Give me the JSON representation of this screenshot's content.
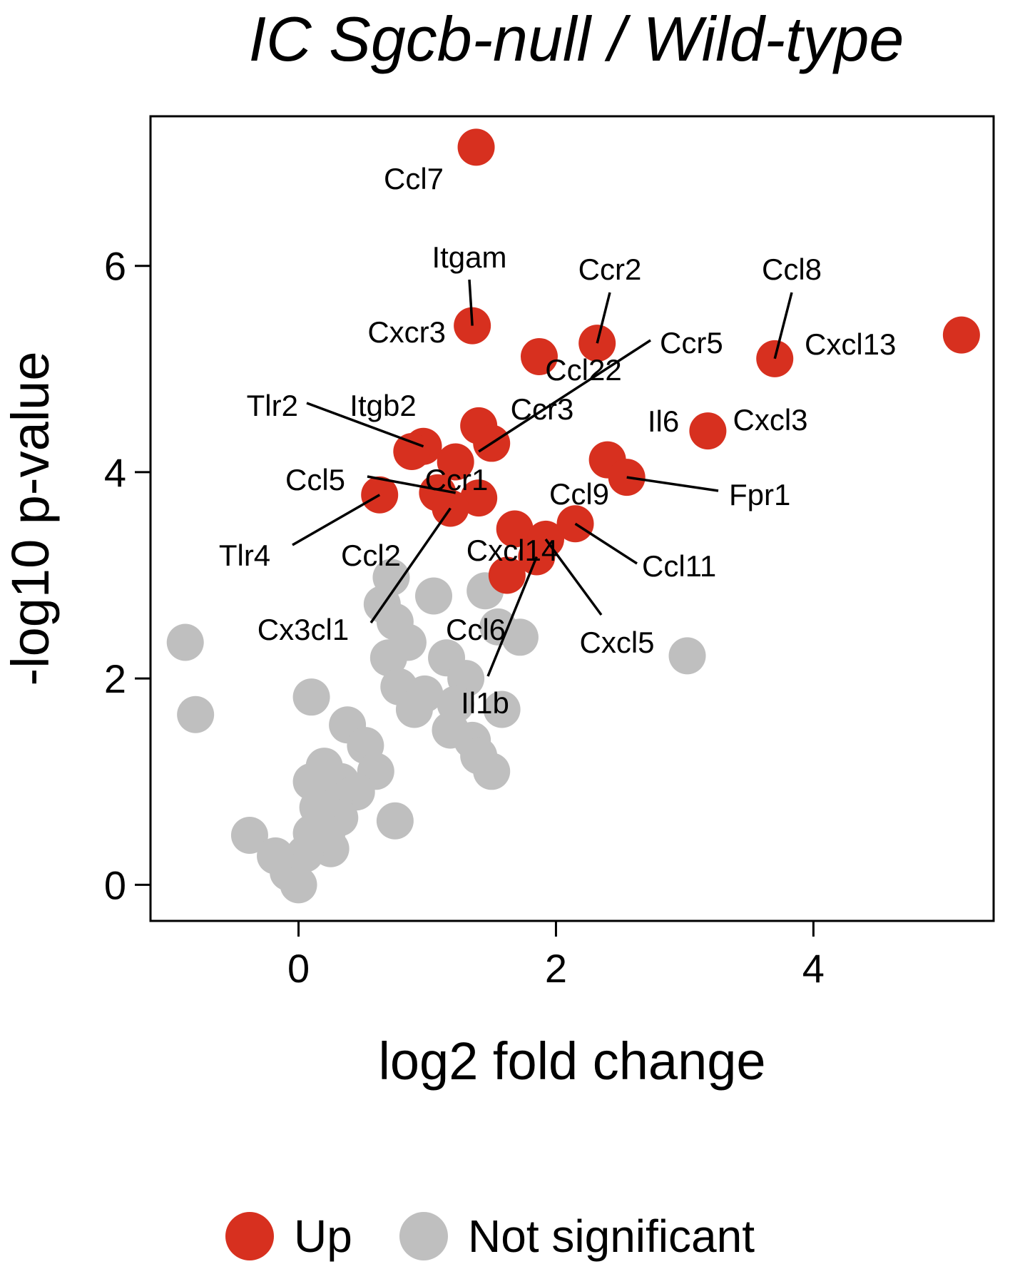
{
  "chart_data": {
    "type": "scatter",
    "title": "IC Sgcb-null / Wild-type",
    "xlabel": "log2 fold change",
    "ylabel": "-log10 p-value",
    "xlim": [
      -1.15,
      5.4
    ],
    "ylim": [
      -0.35,
      7.45
    ],
    "xticks": [
      0,
      2,
      4
    ],
    "yticks": [
      0,
      2,
      4,
      6
    ],
    "grid": false,
    "legend_position": "bottom",
    "colors": {
      "up": "#d7301f",
      "not_significant": "#bfbfbf"
    },
    "legend": [
      {
        "key": "up",
        "label": "Up"
      },
      {
        "key": "not_significant",
        "label": "Not significant"
      }
    ],
    "series": [
      {
        "key": "not_significant",
        "name": "Not significant",
        "points": [
          [
            -0.88,
            2.35
          ],
          [
            -0.8,
            1.65
          ],
          [
            0.1,
            1.82
          ],
          [
            0.38,
            1.55
          ],
          [
            0.52,
            1.35
          ],
          [
            0.6,
            1.1
          ],
          [
            0.2,
            1.15
          ],
          [
            0.33,
            1.0
          ],
          [
            0.45,
            0.9
          ],
          [
            0.1,
            1.0
          ],
          [
            0.28,
            0.8
          ],
          [
            0.15,
            0.75
          ],
          [
            0.32,
            0.65
          ],
          [
            0.22,
            0.5
          ],
          [
            0.25,
            0.35
          ],
          [
            0.1,
            0.5
          ],
          [
            0.05,
            0.3
          ],
          [
            -0.38,
            0.48
          ],
          [
            -0.18,
            0.28
          ],
          [
            -0.08,
            0.12
          ],
          [
            0.0,
            0.0
          ],
          [
            0.75,
            0.62
          ],
          [
            0.72,
            2.98
          ],
          [
            0.65,
            2.72
          ],
          [
            0.75,
            2.55
          ],
          [
            0.85,
            2.35
          ],
          [
            0.7,
            2.2
          ],
          [
            0.78,
            1.92
          ],
          [
            0.9,
            1.7
          ],
          [
            0.98,
            1.85
          ],
          [
            1.05,
            2.8
          ],
          [
            1.15,
            2.2
          ],
          [
            1.3,
            2.0
          ],
          [
            1.22,
            1.75
          ],
          [
            1.18,
            1.5
          ],
          [
            1.35,
            1.4
          ],
          [
            1.4,
            1.25
          ],
          [
            1.5,
            1.1
          ],
          [
            1.45,
            2.85
          ],
          [
            1.55,
            2.5
          ],
          [
            1.58,
            1.7
          ],
          [
            1.72,
            2.4
          ],
          [
            3.02,
            2.22
          ]
        ]
      },
      {
        "key": "up",
        "name": "Up",
        "points": [
          [
            1.38,
            7.15
          ],
          [
            1.35,
            5.42
          ],
          [
            1.87,
            5.12
          ],
          [
            2.32,
            5.25
          ],
          [
            3.7,
            5.1
          ],
          [
            5.15,
            5.33
          ],
          [
            3.18,
            4.4
          ],
          [
            1.4,
            4.45
          ],
          [
            1.5,
            4.28
          ],
          [
            0.97,
            4.25
          ],
          [
            0.88,
            4.2
          ],
          [
            1.22,
            4.1
          ],
          [
            2.4,
            4.12
          ],
          [
            2.55,
            3.95
          ],
          [
            0.63,
            3.78
          ],
          [
            1.08,
            3.8
          ],
          [
            1.4,
            3.75
          ],
          [
            1.18,
            3.65
          ],
          [
            1.68,
            3.45
          ],
          [
            1.92,
            3.35
          ],
          [
            2.15,
            3.5
          ],
          [
            1.85,
            3.18
          ],
          [
            1.62,
            3.0
          ]
        ]
      }
    ],
    "annotations": [
      {
        "text": "Ccl7",
        "point": [
          1.38,
          7.15
        ]
      },
      {
        "text": "Itgam",
        "point": [
          1.35,
          5.42
        ]
      },
      {
        "text": "Ccr2",
        "point": [
          2.32,
          5.25
        ]
      },
      {
        "text": "Ccl8",
        "point": [
          3.7,
          5.1
        ]
      },
      {
        "text": "Cxcr3",
        "point": [
          1.4,
          4.45
        ]
      },
      {
        "text": "Ccr5",
        "point": [
          1.4,
          4.2
        ]
      },
      {
        "text": "Cxcl13",
        "point": [
          5.15,
          5.33
        ]
      },
      {
        "text": "Ccl22",
        "point": [
          1.87,
          5.12
        ]
      },
      {
        "text": "Tlr2",
        "point": [
          0.97,
          4.25
        ]
      },
      {
        "text": "Itgb2",
        "point": [
          0.88,
          4.2
        ]
      },
      {
        "text": "Ccr3",
        "point": [
          1.5,
          4.28
        ]
      },
      {
        "text": "Il6",
        "point": [
          2.4,
          4.12
        ]
      },
      {
        "text": "Cxcl3",
        "point": [
          3.18,
          4.4
        ]
      },
      {
        "text": "Ccl5",
        "point": [
          1.22,
          3.8
        ]
      },
      {
        "text": "Ccr1",
        "point": [
          1.22,
          4.1
        ]
      },
      {
        "text": "Ccl9",
        "point": [
          2.15,
          3.5
        ]
      },
      {
        "text": "Fpr1",
        "point": [
          2.55,
          3.95
        ]
      },
      {
        "text": "Tlr4",
        "point": [
          0.63,
          3.78
        ]
      },
      {
        "text": "Ccl2",
        "point": [
          1.18,
          3.65
        ]
      },
      {
        "text": "Cxcl14",
        "point": [
          1.68,
          3.45
        ]
      },
      {
        "text": "Ccl11",
        "point": [
          2.15,
          3.5
        ]
      },
      {
        "text": "Cx3cl1",
        "point": [
          1.18,
          3.65
        ]
      },
      {
        "text": "Ccl6",
        "point": [
          1.62,
          3.0
        ]
      },
      {
        "text": "Cxcl5",
        "point": [
          1.92,
          3.35
        ]
      },
      {
        "text": "Il1b",
        "point": [
          1.85,
          3.18
        ]
      }
    ]
  }
}
